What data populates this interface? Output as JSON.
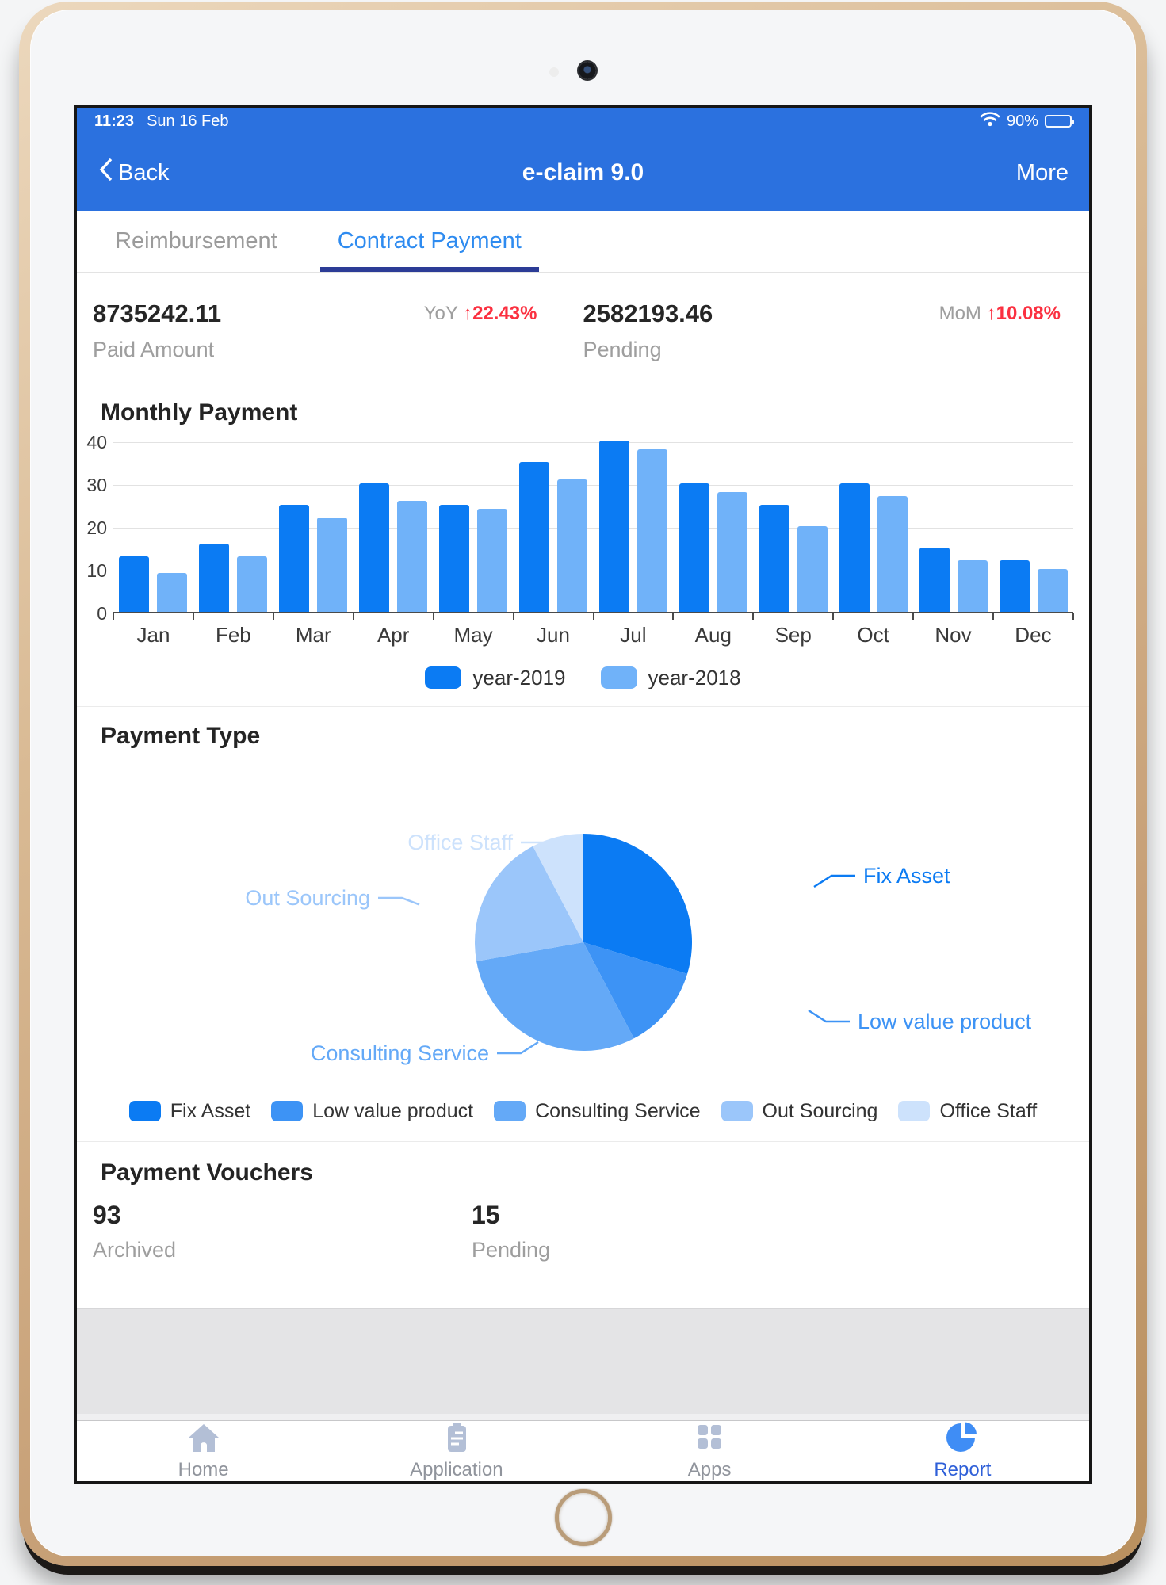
{
  "status_bar": {
    "time": "11:23",
    "date": "Sun 16 Feb",
    "battery_percent": "90%"
  },
  "nav": {
    "back_label": "Back",
    "title": "e-claim 9.0",
    "more_label": "More"
  },
  "tabs": [
    {
      "label": "Reimbursement",
      "active": false
    },
    {
      "label": "Contract Payment",
      "active": true
    }
  ],
  "stats": [
    {
      "value": "8735242.11",
      "label": "Paid Amount",
      "delta_prefix": "YoY",
      "delta_arrow": "↑",
      "delta": "22.43%"
    },
    {
      "value": "2582193.46",
      "label": "Pending",
      "delta_prefix": "MoM",
      "delta_arrow": "↑",
      "delta": "10.08%"
    }
  ],
  "chart_data": [
    {
      "type": "bar",
      "title": "Monthly Payment",
      "categories": [
        "Jan",
        "Feb",
        "Mar",
        "Apr",
        "May",
        "Jun",
        "Jul",
        "Aug",
        "Sep",
        "Oct",
        "Nov",
        "Dec"
      ],
      "series": [
        {
          "name": "year-2019",
          "color": "#0b7bf3",
          "values": [
            13,
            16,
            25,
            30,
            25,
            35,
            40,
            30,
            25,
            30,
            15,
            12
          ]
        },
        {
          "name": "year-2018",
          "color": "#70b2f9",
          "values": [
            9,
            13,
            22,
            26,
            24,
            31,
            38,
            28,
            20,
            27,
            12,
            10
          ]
        }
      ],
      "ylabel": "",
      "xlabel": "",
      "ylim": [
        0,
        40
      ],
      "yticks": [
        0,
        10,
        20,
        30,
        40
      ],
      "grid": true,
      "legend_position": "bottom"
    },
    {
      "type": "pie",
      "title": "Payment Type",
      "labels": [
        "Fix Asset",
        "Low value product",
        "Consulting Service",
        "Out Sourcing",
        "Office Staff"
      ],
      "values": [
        29.7,
        12.6,
        29.9,
        20.1,
        7.7
      ],
      "colors": [
        "#0b7bf3",
        "#3d93f5",
        "#64a9f7",
        "#9bc6fa",
        "#cde2fc"
      ],
      "legend_position": "bottom"
    }
  ],
  "vouchers": {
    "title": "Payment Vouchers",
    "items": [
      {
        "value": "93",
        "label": "Archived"
      },
      {
        "value": "15",
        "label": "Pending"
      }
    ]
  },
  "tabbar": {
    "items": [
      {
        "label": "Home",
        "icon": "home-icon",
        "active": false
      },
      {
        "label": "Application",
        "icon": "application-icon",
        "active": false
      },
      {
        "label": "Apps",
        "icon": "apps-icon",
        "active": false
      },
      {
        "label": "Report",
        "icon": "report-icon",
        "active": true
      }
    ]
  },
  "colors": {
    "header_blue": "#2b71df",
    "active_tab": "#2e8bf0",
    "tab_underline": "#2c3c96",
    "delta_red": "#fb3040",
    "inactive_icon": "#b3bfd6",
    "active_icon": "#3f8df5"
  }
}
